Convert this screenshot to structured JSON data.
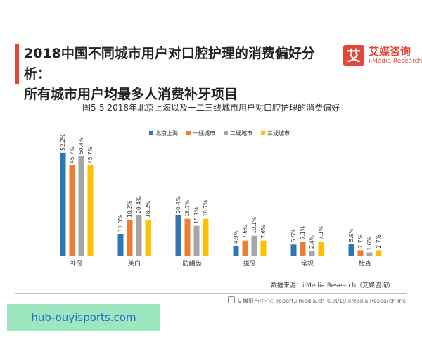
{
  "header": {
    "title_line1": "2018中国不同城市用户对口腔护理的消费偏好分析：",
    "title_line2": "所有城市用户均最多人消费补牙项目"
  },
  "brand": {
    "glyph": "艾",
    "name": "艾媒咨询",
    "sub": "iiMedia Research",
    "color": "#e2473a"
  },
  "footer": {
    "source": "数据来源：iiMedia Research（艾媒咨询）",
    "report": "艾媒报告中心：report.iimedia.cn  ©2019  iiMedia Research  Inc"
  },
  "watermark": {
    "text": "hub-ouyisports.com"
  },
  "chart_data": {
    "type": "bar",
    "title": "图5-5  2018年北京上海以及一二三线城市用户对口腔护理的消费偏好",
    "xlabel": "",
    "ylabel": "",
    "ylim": [
      0,
      60
    ],
    "legend_position": "top",
    "value_suffix": "%",
    "categories": [
      "补牙",
      "美白",
      "防龋齿",
      "拔牙",
      "常规",
      "检查"
    ],
    "series": [
      {
        "name": "北京上海",
        "color": "#2e75b6",
        "values": [
          52.2,
          11.0,
          20.4,
          4.9,
          5.6,
          5.9
        ]
      },
      {
        "name": "一线城市",
        "color": "#ed7d31",
        "values": [
          45.7,
          18.2,
          18.7,
          7.6,
          7.1,
          2.7
        ]
      },
      {
        "name": "二线城市",
        "color": "#a5a5a5",
        "values": [
          50.4,
          20.4,
          15.1,
          10.1,
          2.4,
          1.6
        ]
      },
      {
        "name": "三线城市",
        "color": "#ffc000",
        "values": [
          45.7,
          18.2,
          18.7,
          7.6,
          7.1,
          2.7
        ]
      }
    ]
  }
}
